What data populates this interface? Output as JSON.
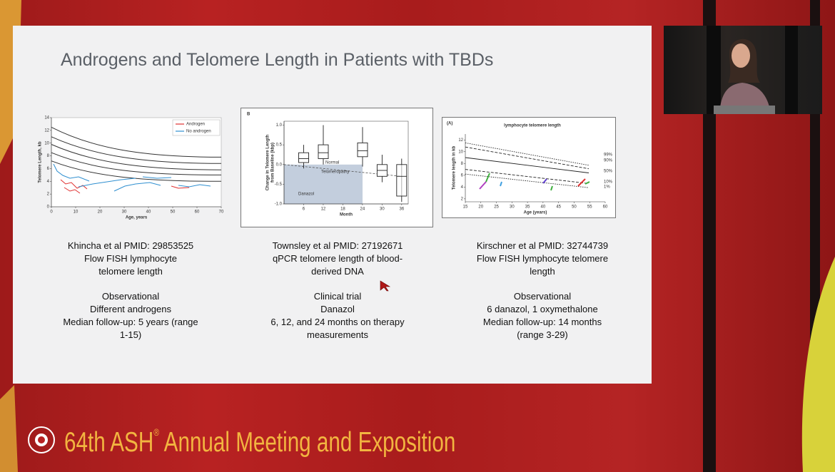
{
  "slide": {
    "title": "Androgens and Telomere Length in Patients with TBDs",
    "studies": [
      {
        "citation": "Khincha et al PMID: 29853525",
        "method": "Flow FISH lymphocyte telomere length",
        "design": "Observational",
        "details": [
          "Different androgens",
          "Median follow-up: 5 years (range 1-15)"
        ]
      },
      {
        "citation": "Townsley et al PMID: 27192671",
        "method": "qPCR telomere length of blood-derived DNA",
        "design": "Clinical trial",
        "details": [
          "Danazol",
          "6, 12, and 24 months on therapy measurements"
        ]
      },
      {
        "citation": "Kirschner et al PMID: 32744739",
        "method": "Flow FISH lymphocyte telomere length",
        "design": "Observational",
        "details": [
          "6 danazol, 1 oxymethalone",
          "Median follow-up: 14 months (range 3-29)"
        ]
      }
    ]
  },
  "figures": [
    {
      "ylabel": [
        "Telomere Length, kb"
      ],
      "xlabel": "Age, years",
      "xlim": [
        0,
        70
      ],
      "ylim": [
        0,
        14
      ],
      "xticks": [
        0,
        10,
        20,
        30,
        40,
        50,
        60,
        70
      ],
      "yticks": [
        0,
        2,
        4,
        6,
        8,
        10,
        12,
        14
      ],
      "legend": [
        {
          "name": "Androgen",
          "color": "#e03030"
        },
        {
          "name": "No androgen",
          "color": "#2f8fd0"
        }
      ]
    },
    {
      "panel": "B",
      "ylabel": [
        "Change in Telomere Length",
        "from Baseline (kbp)"
      ],
      "xlabel": "Month",
      "xlim": [
        0,
        38
      ],
      "ylim": [
        -1,
        1.1
      ],
      "xticks": [
        6,
        12,
        18,
        24,
        30,
        36
      ],
      "yticks": [
        {
          "value": -1,
          "label": "-1.0"
        },
        -0.5,
        {
          "value": 0,
          "label": "0.0"
        },
        0.5,
        {
          "value": 1,
          "label": "1.0"
        }
      ],
      "annotations": [
        "Normal",
        "Telomeropathy",
        "Danazol"
      ]
    },
    {
      "panel": "(A)",
      "title": "lymphocyte telomere length",
      "ylabel": [
        "Telomere length in kb"
      ],
      "xlabel": "Age (years)",
      "xlim": [
        15,
        60
      ],
      "ylim": [
        1.5,
        13
      ],
      "xticks": [
        15,
        20,
        25,
        30,
        35,
        40,
        45,
        50,
        55,
        60
      ],
      "yticks": [
        2,
        4,
        6,
        8,
        10,
        12
      ],
      "annotations": [
        "99%",
        "90%",
        "50%",
        "10%",
        "1%"
      ]
    }
  ],
  "footer": {
    "meeting": "64th ASH",
    "mark": "®",
    "rest": "Annual Meeting and Exposition"
  }
}
